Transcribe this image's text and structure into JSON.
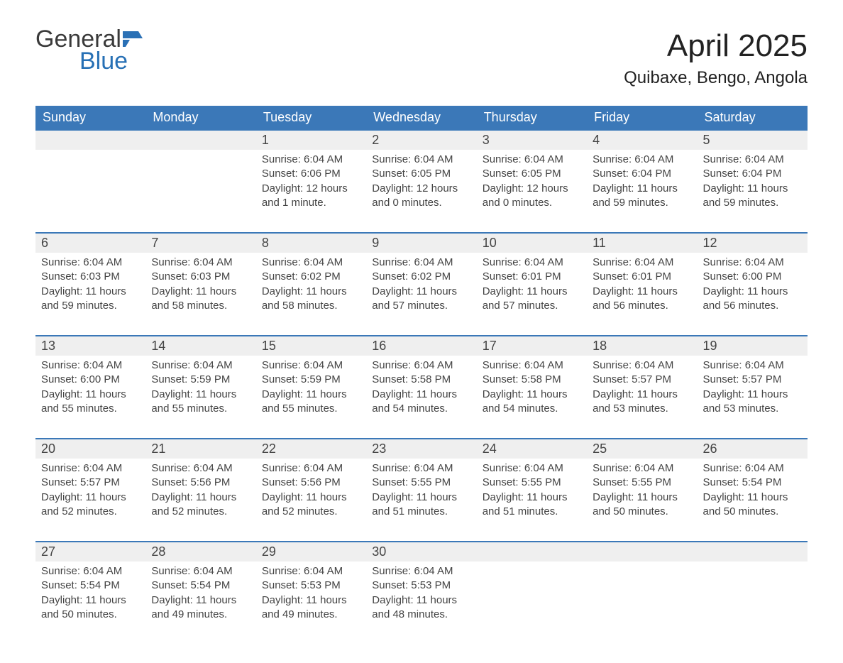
{
  "logo": {
    "top_text": "General",
    "bottom_text": "Blue",
    "flag_color": "#2a70b5",
    "top_color": "#3a3a3a",
    "bottom_color": "#2770b5"
  },
  "title": "April 2025",
  "location": "Quibaxe, Bengo, Angola",
  "colors": {
    "header_bg": "#3b78b8",
    "header_text": "#ffffff",
    "daynum_bg": "#efefef",
    "border_top": "#3b78b8",
    "text": "#444444",
    "page_bg": "#ffffff"
  },
  "day_headers": [
    "Sunday",
    "Monday",
    "Tuesday",
    "Wednesday",
    "Thursday",
    "Friday",
    "Saturday"
  ],
  "weeks": [
    {
      "days": [
        null,
        null,
        {
          "num": "1",
          "sunrise": "Sunrise: 6:04 AM",
          "sunset": "Sunset: 6:06 PM",
          "daylight": "Daylight: 12 hours and 1 minute."
        },
        {
          "num": "2",
          "sunrise": "Sunrise: 6:04 AM",
          "sunset": "Sunset: 6:05 PM",
          "daylight": "Daylight: 12 hours and 0 minutes."
        },
        {
          "num": "3",
          "sunrise": "Sunrise: 6:04 AM",
          "sunset": "Sunset: 6:05 PM",
          "daylight": "Daylight: 12 hours and 0 minutes."
        },
        {
          "num": "4",
          "sunrise": "Sunrise: 6:04 AM",
          "sunset": "Sunset: 6:04 PM",
          "daylight": "Daylight: 11 hours and 59 minutes."
        },
        {
          "num": "5",
          "sunrise": "Sunrise: 6:04 AM",
          "sunset": "Sunset: 6:04 PM",
          "daylight": "Daylight: 11 hours and 59 minutes."
        }
      ]
    },
    {
      "days": [
        {
          "num": "6",
          "sunrise": "Sunrise: 6:04 AM",
          "sunset": "Sunset: 6:03 PM",
          "daylight": "Daylight: 11 hours and 59 minutes."
        },
        {
          "num": "7",
          "sunrise": "Sunrise: 6:04 AM",
          "sunset": "Sunset: 6:03 PM",
          "daylight": "Daylight: 11 hours and 58 minutes."
        },
        {
          "num": "8",
          "sunrise": "Sunrise: 6:04 AM",
          "sunset": "Sunset: 6:02 PM",
          "daylight": "Daylight: 11 hours and 58 minutes."
        },
        {
          "num": "9",
          "sunrise": "Sunrise: 6:04 AM",
          "sunset": "Sunset: 6:02 PM",
          "daylight": "Daylight: 11 hours and 57 minutes."
        },
        {
          "num": "10",
          "sunrise": "Sunrise: 6:04 AM",
          "sunset": "Sunset: 6:01 PM",
          "daylight": "Daylight: 11 hours and 57 minutes."
        },
        {
          "num": "11",
          "sunrise": "Sunrise: 6:04 AM",
          "sunset": "Sunset: 6:01 PM",
          "daylight": "Daylight: 11 hours and 56 minutes."
        },
        {
          "num": "12",
          "sunrise": "Sunrise: 6:04 AM",
          "sunset": "Sunset: 6:00 PM",
          "daylight": "Daylight: 11 hours and 56 minutes."
        }
      ]
    },
    {
      "days": [
        {
          "num": "13",
          "sunrise": "Sunrise: 6:04 AM",
          "sunset": "Sunset: 6:00 PM",
          "daylight": "Daylight: 11 hours and 55 minutes."
        },
        {
          "num": "14",
          "sunrise": "Sunrise: 6:04 AM",
          "sunset": "Sunset: 5:59 PM",
          "daylight": "Daylight: 11 hours and 55 minutes."
        },
        {
          "num": "15",
          "sunrise": "Sunrise: 6:04 AM",
          "sunset": "Sunset: 5:59 PM",
          "daylight": "Daylight: 11 hours and 55 minutes."
        },
        {
          "num": "16",
          "sunrise": "Sunrise: 6:04 AM",
          "sunset": "Sunset: 5:58 PM",
          "daylight": "Daylight: 11 hours and 54 minutes."
        },
        {
          "num": "17",
          "sunrise": "Sunrise: 6:04 AM",
          "sunset": "Sunset: 5:58 PM",
          "daylight": "Daylight: 11 hours and 54 minutes."
        },
        {
          "num": "18",
          "sunrise": "Sunrise: 6:04 AM",
          "sunset": "Sunset: 5:57 PM",
          "daylight": "Daylight: 11 hours and 53 minutes."
        },
        {
          "num": "19",
          "sunrise": "Sunrise: 6:04 AM",
          "sunset": "Sunset: 5:57 PM",
          "daylight": "Daylight: 11 hours and 53 minutes."
        }
      ]
    },
    {
      "days": [
        {
          "num": "20",
          "sunrise": "Sunrise: 6:04 AM",
          "sunset": "Sunset: 5:57 PM",
          "daylight": "Daylight: 11 hours and 52 minutes."
        },
        {
          "num": "21",
          "sunrise": "Sunrise: 6:04 AM",
          "sunset": "Sunset: 5:56 PM",
          "daylight": "Daylight: 11 hours and 52 minutes."
        },
        {
          "num": "22",
          "sunrise": "Sunrise: 6:04 AM",
          "sunset": "Sunset: 5:56 PM",
          "daylight": "Daylight: 11 hours and 52 minutes."
        },
        {
          "num": "23",
          "sunrise": "Sunrise: 6:04 AM",
          "sunset": "Sunset: 5:55 PM",
          "daylight": "Daylight: 11 hours and 51 minutes."
        },
        {
          "num": "24",
          "sunrise": "Sunrise: 6:04 AM",
          "sunset": "Sunset: 5:55 PM",
          "daylight": "Daylight: 11 hours and 51 minutes."
        },
        {
          "num": "25",
          "sunrise": "Sunrise: 6:04 AM",
          "sunset": "Sunset: 5:55 PM",
          "daylight": "Daylight: 11 hours and 50 minutes."
        },
        {
          "num": "26",
          "sunrise": "Sunrise: 6:04 AM",
          "sunset": "Sunset: 5:54 PM",
          "daylight": "Daylight: 11 hours and 50 minutes."
        }
      ]
    },
    {
      "days": [
        {
          "num": "27",
          "sunrise": "Sunrise: 6:04 AM",
          "sunset": "Sunset: 5:54 PM",
          "daylight": "Daylight: 11 hours and 50 minutes."
        },
        {
          "num": "28",
          "sunrise": "Sunrise: 6:04 AM",
          "sunset": "Sunset: 5:54 PM",
          "daylight": "Daylight: 11 hours and 49 minutes."
        },
        {
          "num": "29",
          "sunrise": "Sunrise: 6:04 AM",
          "sunset": "Sunset: 5:53 PM",
          "daylight": "Daylight: 11 hours and 49 minutes."
        },
        {
          "num": "30",
          "sunrise": "Sunrise: 6:04 AM",
          "sunset": "Sunset: 5:53 PM",
          "daylight": "Daylight: 11 hours and 48 minutes."
        },
        null,
        null,
        null
      ]
    }
  ]
}
